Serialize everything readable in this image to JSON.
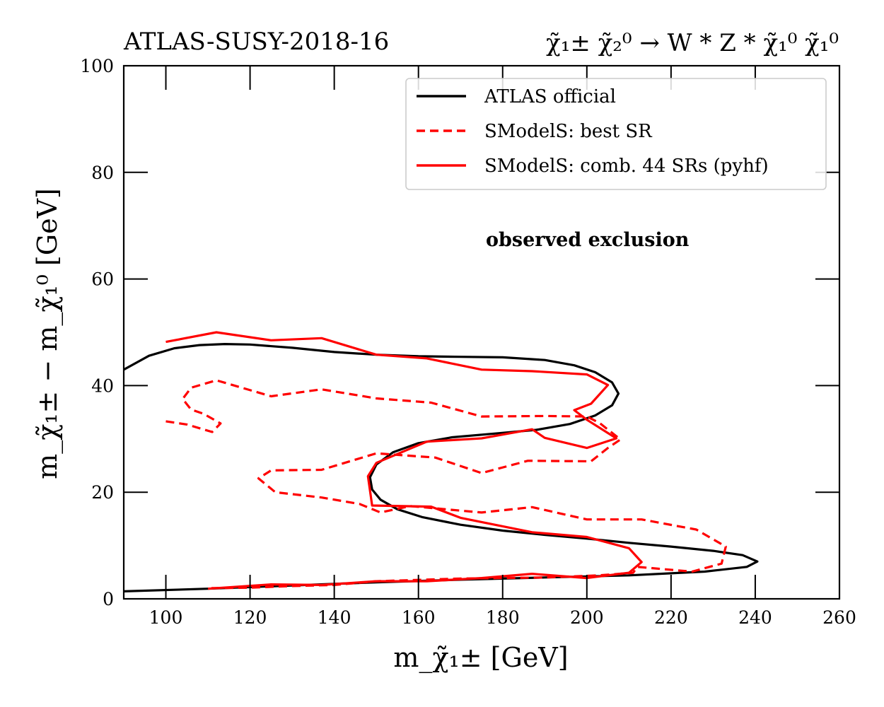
{
  "chart_data": {
    "type": "line",
    "title_left": "ATLAS-SUSY-2018-16",
    "title_right": "χ̃₁± χ̃₂⁰ → W * Z * χ̃₁⁰ χ̃₁⁰",
    "xlabel": "m_χ̃₁± [GeV]",
    "ylabel": "m_χ̃₁± − m_χ̃₁⁰ [GeV]",
    "xlim": [
      90,
      260
    ],
    "ylim": [
      0,
      100
    ],
    "xticks": [
      100,
      120,
      140,
      160,
      180,
      200,
      220,
      240,
      260
    ],
    "yticks": [
      0,
      20,
      40,
      60,
      80,
      100
    ],
    "annotation": "observed exclusion",
    "legend_position": "top-right",
    "series": [
      {
        "name": "ATLAS official",
        "color": "#000000",
        "style": "solid",
        "points": [
          [
            90,
            43.0
          ],
          [
            96,
            45.6
          ],
          [
            102,
            47.0
          ],
          [
            108,
            47.6
          ],
          [
            114,
            47.8
          ],
          [
            120,
            47.7
          ],
          [
            130,
            47.1
          ],
          [
            140,
            46.3
          ],
          [
            150,
            45.8
          ],
          [
            160,
            45.5
          ],
          [
            170,
            45.4
          ],
          [
            180,
            45.3
          ],
          [
            190,
            44.8
          ],
          [
            197,
            43.8
          ],
          [
            202,
            42.5
          ],
          [
            206,
            40.6
          ],
          [
            207.5,
            38.5
          ],
          [
            206,
            36.3
          ],
          [
            202,
            34.4
          ],
          [
            196,
            32.8
          ],
          [
            188,
            31.7
          ],
          [
            178,
            31.0
          ],
          [
            168,
            30.3
          ],
          [
            160,
            29.2
          ],
          [
            154,
            27.5
          ],
          [
            150,
            25.2
          ],
          [
            148.5,
            22.8
          ],
          [
            149,
            20.5
          ],
          [
            151,
            18.6
          ],
          [
            155,
            16.8
          ],
          [
            161,
            15.3
          ],
          [
            170,
            13.9
          ],
          [
            180,
            12.8
          ],
          [
            190,
            12.0
          ],
          [
            200,
            11.3
          ],
          [
            210,
            10.5
          ],
          [
            220,
            9.8
          ],
          [
            230,
            9.0
          ],
          [
            237,
            8.2
          ],
          [
            240.5,
            7.0
          ],
          [
            238,
            6.0
          ],
          [
            228,
            5.1
          ],
          [
            210,
            4.4
          ],
          [
            190,
            4.0
          ],
          [
            170,
            3.6
          ],
          [
            150,
            3.1
          ],
          [
            130,
            2.5
          ],
          [
            110,
            1.9
          ],
          [
            90,
            1.4
          ]
        ]
      },
      {
        "name": "SModelS: best SR",
        "color": "#ff0000",
        "style": "dashed",
        "points": [
          [
            100,
            33.3
          ],
          [
            105,
            32.7
          ],
          [
            111,
            31.3
          ],
          [
            113,
            32.9
          ],
          [
            109,
            34.7
          ],
          [
            106,
            35.5
          ],
          [
            104,
            37.5
          ],
          [
            106,
            39.6
          ],
          [
            112,
            41.0
          ],
          [
            125,
            38.0
          ],
          [
            137,
            39.3
          ],
          [
            150,
            37.6
          ],
          [
            163,
            36.8
          ],
          [
            175,
            34.2
          ],
          [
            190,
            34.3
          ],
          [
            200,
            34.2
          ],
          [
            203,
            33.0
          ],
          [
            208,
            29.9
          ],
          [
            205,
            28.3
          ],
          [
            201,
            25.8
          ],
          [
            186,
            25.9
          ],
          [
            175,
            23.6
          ],
          [
            164,
            26.5
          ],
          [
            150,
            27.3
          ],
          [
            137,
            24.2
          ],
          [
            125,
            24.1
          ],
          [
            122,
            22.6
          ],
          [
            126,
            20.0
          ],
          [
            137,
            19.0
          ],
          [
            146,
            17.8
          ],
          [
            151,
            16.2
          ],
          [
            158,
            17.4
          ],
          [
            175,
            16.2
          ],
          [
            187,
            17.2
          ],
          [
            200,
            14.9
          ],
          [
            213,
            14.9
          ],
          [
            226,
            13.0
          ],
          [
            233,
            9.8
          ],
          [
            232,
            6.6
          ],
          [
            225,
            5.1
          ],
          [
            212,
            6.0
          ],
          [
            211,
            4.9
          ],
          [
            203,
            4.4
          ],
          [
            190,
            4.0
          ],
          [
            170,
            3.8
          ],
          [
            150,
            3.3
          ],
          [
            140,
            2.6
          ],
          [
            130,
            2.4
          ],
          [
            120,
            2.1
          ],
          [
            110,
            2.0
          ]
        ]
      },
      {
        "name": "SModelS: comb. 44 SRs (pyhf)",
        "color": "#ff0000",
        "style": "solid",
        "points": [
          [
            100,
            48.2
          ],
          [
            112,
            50.0
          ],
          [
            125,
            48.5
          ],
          [
            137,
            48.9
          ],
          [
            150,
            45.8
          ],
          [
            162,
            45.1
          ],
          [
            175,
            43.0
          ],
          [
            187,
            42.7
          ],
          [
            200,
            42.1
          ],
          [
            205,
            40.1
          ],
          [
            201,
            36.6
          ],
          [
            197,
            35.4
          ],
          [
            200,
            33.6
          ],
          [
            207,
            30.1
          ],
          [
            200,
            28.3
          ],
          [
            190,
            30.2
          ],
          [
            187,
            31.8
          ],
          [
            175,
            30.1
          ],
          [
            162,
            29.5
          ],
          [
            150,
            25.5
          ],
          [
            148,
            23.0
          ],
          [
            149,
            17.5
          ],
          [
            163,
            17.3
          ],
          [
            170,
            15.2
          ],
          [
            187,
            12.5
          ],
          [
            200,
            11.6
          ],
          [
            210,
            9.5
          ],
          [
            213,
            6.9
          ],
          [
            210,
            4.9
          ],
          [
            200,
            3.9
          ],
          [
            187,
            4.7
          ],
          [
            175,
            3.9
          ],
          [
            162,
            3.3
          ],
          [
            150,
            3.3
          ],
          [
            137,
            2.6
          ],
          [
            125,
            2.7
          ],
          [
            110,
            1.9
          ]
        ]
      }
    ]
  }
}
